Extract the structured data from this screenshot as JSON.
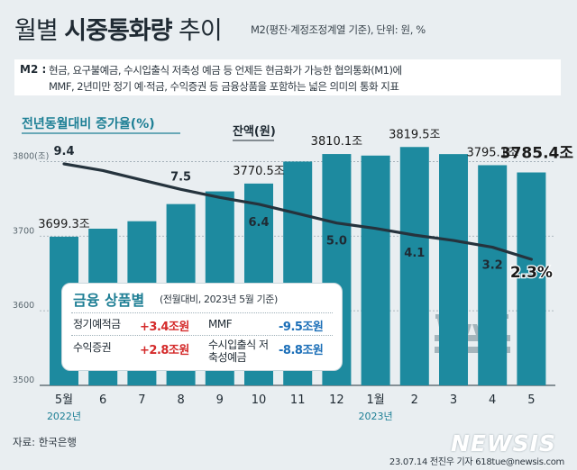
{
  "header": {
    "title_pre": "월별 ",
    "title_bold": "시중통화량",
    "title_post": " 추이",
    "subtitle": "M2(평잔·계정조정계열 기준), 단위: 원, %"
  },
  "definition": {
    "label": "M2 :",
    "line1": "현금, 요구불예금, 수시입출식 저축성 예금 등 언제든 현금화가 가능한 협의통화(M1)에",
    "line2": "MMF, 2년미만 정기 예·적금, 수익증권 등 금융상품을 포함하는 넓은 의미의 통화 지표"
  },
  "chart_data": {
    "type": "bar",
    "categories": [
      "5월",
      "6",
      "7",
      "8",
      "9",
      "10",
      "11",
      "12",
      "1월",
      "2",
      "3",
      "4",
      "5"
    ],
    "year_labels": [
      "2022년",
      "2023년"
    ],
    "ylim": [
      3500,
      3830
    ],
    "yticks": [
      "3800(조)",
      "3700",
      "3600",
      "3500"
    ],
    "series": [
      {
        "name": "잔액(원)",
        "type": "bar",
        "values": [
          3699.3,
          3710,
          3720,
          3743,
          3760,
          3770.5,
          3800,
          3810.1,
          3808,
          3819.5,
          3810,
          3795.1,
          3785.4
        ],
        "labels": [
          "3699.3조",
          "",
          "",
          "",
          "",
          "3770.5조",
          "",
          "3810.1조",
          "",
          "3819.5조",
          "",
          "3795.1조",
          "3785.4조"
        ],
        "color": "#1d8a9f"
      },
      {
        "name": "전년동월대비 증가율(%)",
        "type": "line",
        "values": [
          9.4,
          8.9,
          8.2,
          7.5,
          6.9,
          6.4,
          5.7,
          5.0,
          4.6,
          4.1,
          3.7,
          3.2,
          2.3
        ],
        "labels": [
          "9.4",
          "",
          "",
          "7.5",
          "",
          "6.4",
          "",
          "5.0",
          "",
          "4.1",
          "",
          "3.2",
          "2.3%"
        ],
        "color": "#25333d"
      }
    ]
  },
  "financial_box": {
    "title": "금융 상품별",
    "note": "(전월대비, 2023년 5월 기준)",
    "items": [
      {
        "name": "정기예적금",
        "value": "+3.4조원",
        "dir": "up"
      },
      {
        "name": "MMF",
        "value": "-9.5조원",
        "dir": "down"
      },
      {
        "name": "수익증권",
        "value": "+2.8조원",
        "dir": "up"
      },
      {
        "name": "수시입출식 저축성예금",
        "value": "-8.8조원",
        "dir": "down"
      }
    ]
  },
  "footer": {
    "source": "자료: 한국은행",
    "credit": "23.07.14 전진우 기자 618tue@newsis.com",
    "watermark": "NEWSIS"
  }
}
